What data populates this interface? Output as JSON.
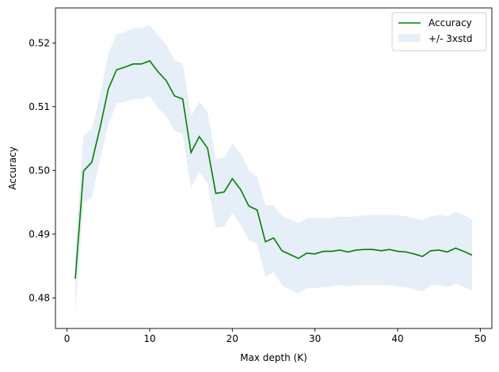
{
  "chart_data": {
    "type": "line",
    "title": "",
    "xlabel": "Max depth (K)",
    "ylabel": "Accuracy",
    "xlim": [
      -1.4,
      51.4
    ],
    "ylim": [
      0.4752,
      0.5255
    ],
    "x_ticks": [
      0,
      10,
      20,
      30,
      40,
      50
    ],
    "y_ticks": [
      0.48,
      0.49,
      0.5,
      0.51,
      0.52
    ],
    "x_tick_labels": [
      "0",
      "10",
      "20",
      "30",
      "40",
      "50"
    ],
    "y_tick_labels": [
      "0.48",
      "0.49",
      "0.50",
      "0.51",
      "0.52"
    ],
    "grid": false,
    "legend_position": "top-right",
    "x": [
      1,
      2,
      3,
      4,
      5,
      6,
      7,
      8,
      9,
      10,
      11,
      12,
      13,
      14,
      15,
      16,
      17,
      18,
      19,
      20,
      21,
      22,
      23,
      24,
      25,
      26,
      27,
      28,
      29,
      30,
      31,
      32,
      33,
      34,
      35,
      36,
      37,
      38,
      39,
      40,
      41,
      42,
      43,
      44,
      45,
      46,
      47,
      48,
      49
    ],
    "series": [
      {
        "name": "Accuracy",
        "color": "#008000",
        "kind": "line",
        "values": [
          0.483,
          0.4999,
          0.5013,
          0.5067,
          0.5128,
          0.5158,
          0.5162,
          0.5167,
          0.5167,
          0.5172,
          0.5155,
          0.5141,
          0.5117,
          0.5112,
          0.5028,
          0.5053,
          0.5035,
          0.4964,
          0.4966,
          0.4987,
          0.497,
          0.4944,
          0.4938,
          0.4888,
          0.4894,
          0.4874,
          0.4868,
          0.4862,
          0.487,
          0.4869,
          0.4873,
          0.4873,
          0.4875,
          0.4872,
          0.4875,
          0.4876,
          0.4876,
          0.4874,
          0.4876,
          0.4873,
          0.4872,
          0.4869,
          0.4865,
          0.4874,
          0.4875,
          0.4872,
          0.4878,
          0.4873,
          0.4867
        ]
      },
      {
        "name": "+/- 3xstd",
        "color": "#e6eef7",
        "kind": "band",
        "upper": [
          0.4875,
          0.5055,
          0.5065,
          0.5118,
          0.5183,
          0.5214,
          0.5217,
          0.5223,
          0.5223,
          0.5228,
          0.5212,
          0.5197,
          0.5173,
          0.5168,
          0.5085,
          0.5108,
          0.5092,
          0.5018,
          0.502,
          0.5042,
          0.5027,
          0.5,
          0.499,
          0.4945,
          0.4945,
          0.4928,
          0.4923,
          0.4917,
          0.4925,
          0.4925,
          0.4925,
          0.4925,
          0.4928,
          0.4927,
          0.4928,
          0.493,
          0.493,
          0.493,
          0.493,
          0.493,
          0.4928,
          0.4925,
          0.4922,
          0.4928,
          0.493,
          0.4928,
          0.4935,
          0.493,
          0.4923
        ],
        "lower": [
          0.478,
          0.4948,
          0.4958,
          0.5017,
          0.5073,
          0.5105,
          0.5108,
          0.5112,
          0.5112,
          0.5117,
          0.5098,
          0.5085,
          0.5062,
          0.5057,
          0.4972,
          0.4998,
          0.498,
          0.491,
          0.4912,
          0.4933,
          0.4915,
          0.489,
          0.4885,
          0.4833,
          0.484,
          0.482,
          0.4813,
          0.4807,
          0.4815,
          0.4815,
          0.4817,
          0.4818,
          0.482,
          0.4818,
          0.482,
          0.482,
          0.482,
          0.482,
          0.482,
          0.4818,
          0.4817,
          0.4813,
          0.481,
          0.482,
          0.482,
          0.4817,
          0.4822,
          0.4817,
          0.4812
        ]
      }
    ]
  }
}
